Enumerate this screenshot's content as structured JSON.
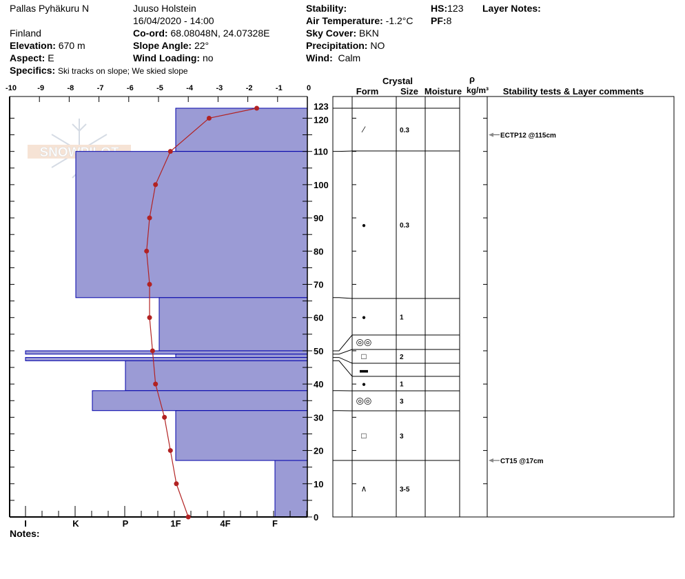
{
  "header": {
    "location": "Pallas Pyhäkuru N",
    "observer": "Juuso Holstein",
    "datetime": "16/04/2020 - 14:00",
    "country": "Finland",
    "coord_label": "Co-ord:",
    "coord": "68.08048N, 24.07328E",
    "elevation_label": "Elevation:",
    "elevation": "670 m",
    "slope_label": "Slope Angle:",
    "slope": "22°",
    "aspect_label": "Aspect:",
    "aspect": "E",
    "wind_loading_label": "Wind Loading:",
    "wind_loading": "no",
    "specifics_label": "Specifics:",
    "specifics": "Ski tracks on slope; We skied slope",
    "stability_label": "Stability:",
    "stability": "",
    "air_temp_label": "Air Temperature:",
    "air_temp": "-1.2°C",
    "sky_label": "Sky Cover:",
    "sky": "BKN",
    "precip_label": "Precipitation:",
    "precip": "NO",
    "wind_label": "Wind:",
    "wind": "Calm",
    "hs_label": "HS:",
    "hs": "123",
    "pf_label": "PF:",
    "pf": "8",
    "layer_notes_label": "Layer Notes:",
    "notes_label": "Notes:"
  },
  "logo": {
    "text": "SNOWPILOT"
  },
  "columns": {
    "crystal": "Crystal",
    "form": "Form",
    "size": "Size",
    "moisture": "Moisture",
    "rho": "ρ",
    "density_unit": "kg/m³",
    "comments": "Stability tests & Layer comments"
  },
  "chart_data": {
    "type": "snow-profile",
    "temp_axis": {
      "range": [
        -10,
        0
      ],
      "ticks": [
        "-10",
        "-9",
        "-8",
        "-7",
        "-6",
        "-5",
        "-4",
        "-3",
        "-2",
        "-1",
        "0"
      ]
    },
    "hardness_axis": {
      "ticks": [
        "I",
        "K",
        "P",
        "1F",
        "4F",
        "F"
      ]
    },
    "height_axis": {
      "range": [
        0,
        123
      ],
      "ticks": [
        "123",
        "120",
        "110",
        "100",
        "90",
        "80",
        "70",
        "60",
        "50",
        "40",
        "30",
        "20",
        "10",
        "0"
      ]
    },
    "colors": {
      "layer_fill": "#9b9bd5",
      "layer_stroke": "#0000aa",
      "temp_line": "#b22222"
    },
    "layers": [
      {
        "top": 123,
        "bottom": 110,
        "hardness": "1F",
        "form_icon": "decomposing-particles-icon",
        "form_glyph": "⁄",
        "size": "0.3"
      },
      {
        "top": 110,
        "bottom": 66,
        "hardness": "K",
        "form_icon": "rounded-grains-icon",
        "form_glyph": "●",
        "size": "0.3"
      },
      {
        "top": 66,
        "bottom": 50,
        "hardness": "1F+",
        "form_icon": "rounded-grains-icon",
        "form_glyph": "●",
        "size": "1"
      },
      {
        "top": 50,
        "bottom": 49,
        "hardness": "I",
        "form_icon": "melt-forms-icon",
        "form_glyph": "◎◎",
        "size": ""
      },
      {
        "top": 49,
        "bottom": 48,
        "hardness": "1F",
        "form_icon": "faceted-crystals-icon",
        "form_glyph": "□",
        "size": "2"
      },
      {
        "top": 48,
        "bottom": 47,
        "hardness": "I",
        "form_icon": "ice-formation-icon",
        "form_glyph": "▬",
        "size": ""
      },
      {
        "top": 47,
        "bottom": 38,
        "hardness": "P",
        "form_icon": "rounded-grains-icon",
        "form_glyph": "●",
        "size": "1"
      },
      {
        "top": 38,
        "bottom": 32,
        "hardness": "K-",
        "form_icon": "melt-forms-icon",
        "form_glyph": "◎◎",
        "size": "3"
      },
      {
        "top": 32,
        "bottom": 17,
        "hardness": "1F",
        "form_icon": "faceted-crystals-icon",
        "form_glyph": "□",
        "size": "3"
      },
      {
        "top": 17,
        "bottom": 0,
        "hardness": "F",
        "form_icon": "depth-hoar-icon",
        "form_glyph": "∧",
        "size": "3-5"
      }
    ],
    "temperature_profile": [
      {
        "height": 123,
        "temp": -1.7
      },
      {
        "height": 120,
        "temp": -3.3
      },
      {
        "height": 110,
        "temp": -4.6
      },
      {
        "height": 100,
        "temp": -5.1
      },
      {
        "height": 90,
        "temp": -5.3
      },
      {
        "height": 80,
        "temp": -5.4
      },
      {
        "height": 70,
        "temp": -5.3
      },
      {
        "height": 60,
        "temp": -5.3
      },
      {
        "height": 50,
        "temp": -5.2
      },
      {
        "height": 40,
        "temp": -5.1
      },
      {
        "height": 30,
        "temp": -4.8
      },
      {
        "height": 20,
        "temp": -4.6
      },
      {
        "height": 10,
        "temp": -4.4
      },
      {
        "height": 0,
        "temp": -4.0
      }
    ],
    "stability_tests": [
      {
        "height": 115,
        "label": "ECTP12 @115cm"
      },
      {
        "height": 17,
        "label": "CT15 @17cm"
      }
    ]
  }
}
